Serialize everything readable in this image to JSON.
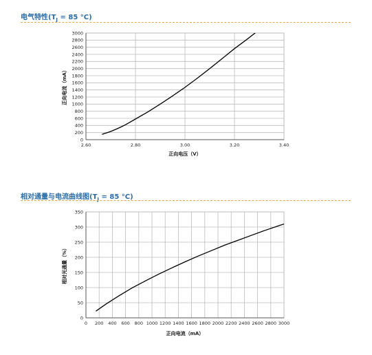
{
  "sections": [
    {
      "title_prefix": "电气特性(T",
      "title_sub": "J",
      "title_suffix": " = 85 °C)"
    },
    {
      "title_prefix": "相对通量与电流曲线图(T",
      "title_sub": "J",
      "title_suffix": " = 85 °C)"
    }
  ],
  "colors": {
    "title": "#2a6ca8",
    "rule": "#e4a64a",
    "grid": "#bbbbbb",
    "curve": "#000000"
  },
  "chart_data": [
    {
      "type": "line",
      "xlabel": "正向电压（V）",
      "ylabel": "正向电流（mA）",
      "xlim": [
        2.6,
        3.4
      ],
      "ylim": [
        0,
        3000
      ],
      "xticks": [
        2.6,
        2.8,
        3.0,
        3.2,
        3.4
      ],
      "xtick_labels": [
        "2.60",
        "2.80",
        "3.00",
        "3.20",
        "3.40"
      ],
      "yticks": [
        0,
        200,
        400,
        600,
        800,
        1000,
        1200,
        1400,
        1600,
        1800,
        2000,
        2200,
        2400,
        2600,
        2800,
        3000
      ],
      "grid": true,
      "series": [
        {
          "x": [
            2.665,
            2.7,
            2.73,
            2.76,
            2.8,
            2.85,
            2.9,
            2.95,
            3.0,
            3.05,
            3.1,
            3.15,
            3.2,
            3.25,
            3.3,
            3.33
          ],
          "y": [
            150,
            230,
            320,
            420,
            580,
            780,
            1000,
            1230,
            1470,
            1730,
            2000,
            2280,
            2560,
            2820,
            3090,
            3250
          ]
        }
      ]
    },
    {
      "type": "line",
      "xlabel": "正向电流（mA）",
      "ylabel": "相对光通量（%）",
      "xlim": [
        0,
        3000
      ],
      "ylim": [
        0,
        350
      ],
      "xticks": [
        0,
        200,
        400,
        600,
        800,
        1000,
        1200,
        1400,
        1600,
        1800,
        2000,
        2200,
        2400,
        2600,
        2800,
        3000
      ],
      "yticks": [
        0,
        50,
        100,
        150,
        200,
        250,
        300,
        350
      ],
      "grid": true,
      "series": [
        {
          "x": [
            150,
            300,
            500,
            700,
            900,
            1100,
            1300,
            1500,
            1700,
            1900,
            2100,
            2300,
            2500,
            2700,
            2900,
            3000
          ],
          "y": [
            22,
            45,
            73,
            99,
            122,
            144,
            165,
            185,
            204,
            222,
            240,
            256,
            272,
            288,
            303,
            310
          ]
        }
      ]
    }
  ]
}
